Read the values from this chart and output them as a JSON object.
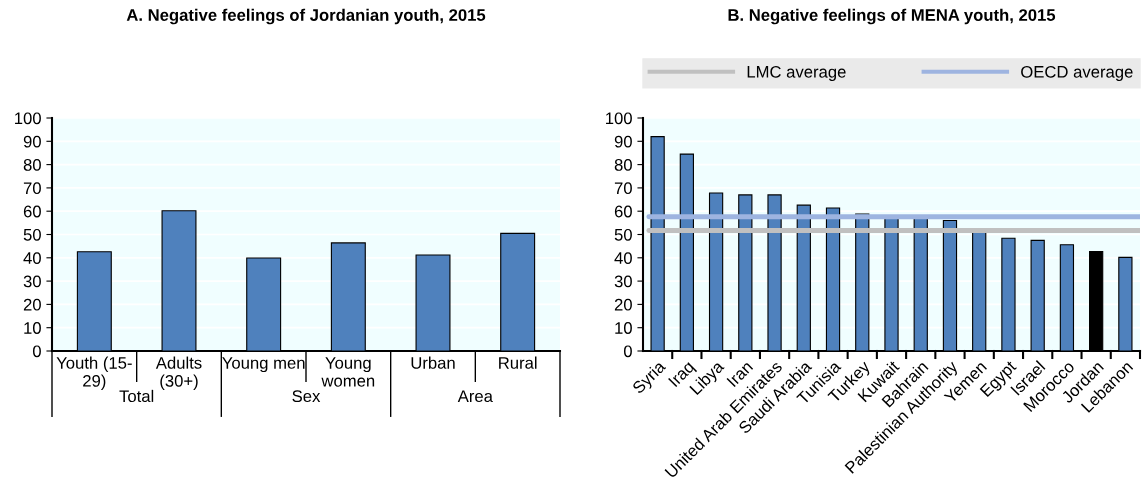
{
  "chart_data": [
    {
      "type": "bar",
      "title": "A. Negative feelings of Jordanian youth, 2015",
      "categories": [
        "Youth (15-\n29)",
        "Adults\n(30+)",
        "Young men",
        "Young\nwomen",
        "Urban",
        "Rural"
      ],
      "values": [
        42.6,
        60.2,
        39.9,
        46.4,
        41.2,
        50.5
      ],
      "color": "#4f81bd",
      "ylim": [
        0,
        100
      ],
      "yticks": [
        0,
        10,
        20,
        30,
        40,
        50,
        60,
        70,
        80,
        90,
        100
      ],
      "grid": "y",
      "annotations": [
        "Total",
        "Sex",
        "Area"
      ]
    },
    {
      "type": "bar",
      "title": "B. Negative feelings of MENA youth, 2015",
      "categories": [
        "Syria",
        "Iraq",
        "Libya",
        "Iran",
        "United Arab Emirates",
        "Saudi Arabia",
        "Tunisia",
        "Turkey",
        "Kuwait",
        "Bahrain",
        "Palestinian Authority",
        "Yemen",
        "Egypt",
        "Israel",
        "Morocco",
        "Jordan",
        "Lebanon"
      ],
      "values": [
        92,
        84.5,
        67.8,
        67,
        67,
        62.6,
        61.4,
        58.8,
        57.5,
        57.5,
        56,
        51,
        48.4,
        47.5,
        45.6,
        42.7,
        40.2
      ],
      "colors": [
        "#4f81bd",
        "#4f81bd",
        "#4f81bd",
        "#4f81bd",
        "#4f81bd",
        "#4f81bd",
        "#4f81bd",
        "#4f81bd",
        "#4f81bd",
        "#4f81bd",
        "#4f81bd",
        "#4f81bd",
        "#4f81bd",
        "#4f81bd",
        "#4f81bd",
        "#000000",
        "#4f81bd"
      ],
      "ylim": [
        0,
        100
      ],
      "yticks": [
        0,
        10,
        20,
        30,
        40,
        50,
        60,
        70,
        80,
        90,
        100
      ],
      "grid": "y",
      "ref_lines": [
        {
          "axis": "y",
          "value": 51.7,
          "label": "LMC average",
          "color": "#c0c0c0"
        },
        {
          "axis": "y",
          "value": 57.6,
          "label": "OECD average",
          "color": "#9eb4e0"
        }
      ],
      "legend": "top"
    }
  ]
}
